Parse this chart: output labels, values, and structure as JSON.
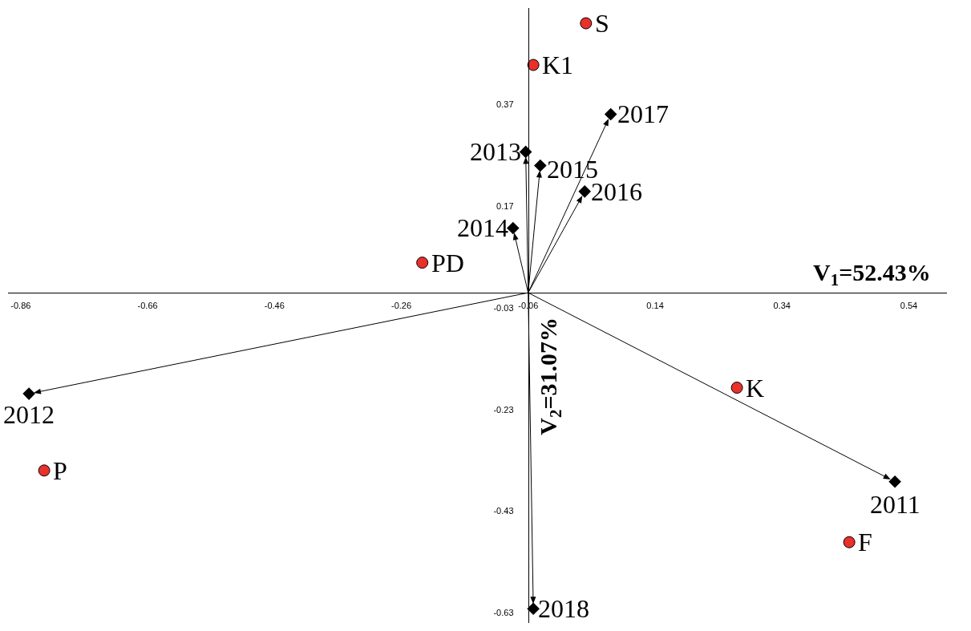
{
  "chart_data": {
    "type": "scatter",
    "xlabel": "V$_{1}$=52.43%",
    "ylabel": "V$_{2}$=31.07%",
    "series": [
      {
        "marker": "circle",
        "color": "#e8312a",
        "x": [
          0.031,
          -0.052,
          -0.227,
          0.269,
          -0.823,
          0.446
        ],
        "values": [
          0.53,
          0.448,
          0.059,
          -0.187,
          -0.35,
          -0.491
        ]
      },
      {
        "marker": "diamond",
        "color": "#000000",
        "x": [
          0.07,
          -0.064,
          -0.041,
          0.029,
          -0.084,
          -0.847,
          0.518,
          -0.052
        ],
        "values": [
          0.351,
          0.277,
          0.25,
          0.199,
          0.127,
          -0.199,
          -0.372,
          -0.622
        ]
      }
    ],
    "annotations": [
      {
        "text": "S",
        "x": 0.031,
        "y": 0.53
      },
      {
        "text": "K1",
        "x": -0.052,
        "y": 0.448
      },
      {
        "text": "PD",
        "x": -0.227,
        "y": 0.059
      },
      {
        "text": "K",
        "x": 0.269,
        "y": -0.187
      },
      {
        "text": "P",
        "x": -0.823,
        "y": -0.35
      },
      {
        "text": "F",
        "x": 0.446,
        "y": -0.491
      },
      {
        "text": "2017",
        "x": 0.07,
        "y": 0.351
      },
      {
        "text": "2013",
        "x": -0.064,
        "y": 0.277
      },
      {
        "text": "2015",
        "x": -0.041,
        "y": 0.25
      },
      {
        "text": "2016",
        "x": 0.029,
        "y": 0.199
      },
      {
        "text": "2014",
        "x": -0.084,
        "y": 0.127
      },
      {
        "text": "2012",
        "x": -0.847,
        "y": -0.199
      },
      {
        "text": "2011",
        "x": 0.518,
        "y": -0.372
      },
      {
        "text": "2018",
        "x": -0.052,
        "y": -0.622
      }
    ],
    "xlim": [
      -0.88,
      0.6
    ],
    "xticks": [
      -0.86,
      -0.66,
      -0.46,
      -0.26,
      -0.06,
      0.14,
      0.34,
      0.54
    ],
    "ylim": [
      -0.65,
      0.56
    ],
    "yticks": [
      0.37,
      0.17,
      -0.03,
      -0.23,
      -0.43,
      -0.63
    ]
  }
}
